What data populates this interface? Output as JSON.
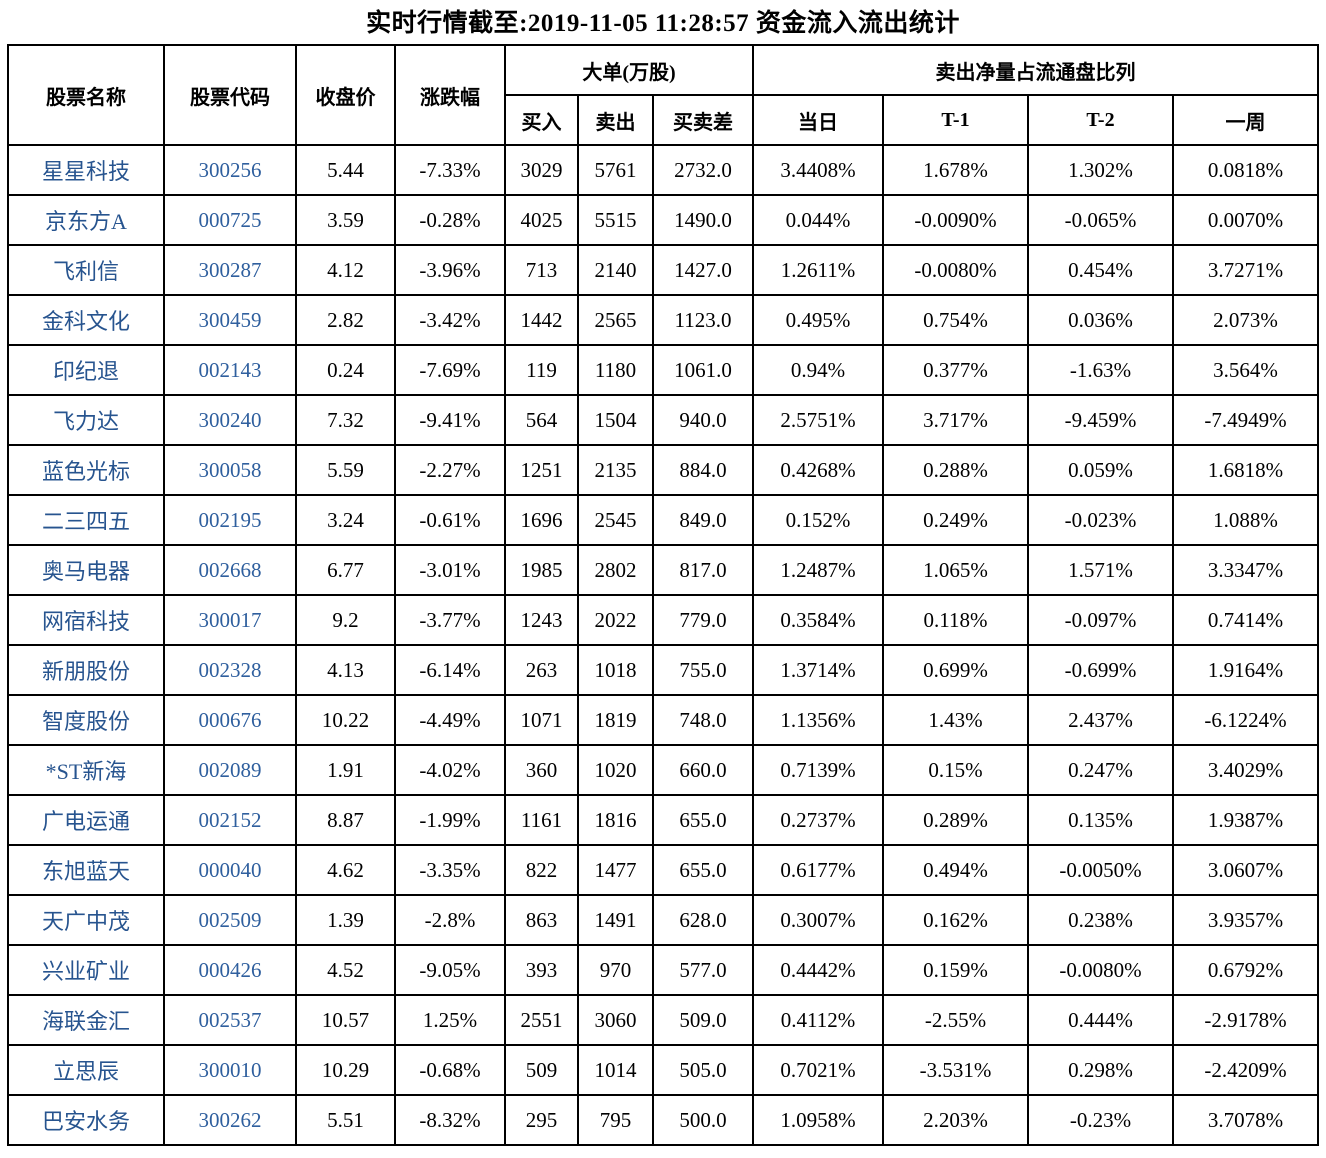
{
  "title": "实时行情截至:2019-11-05 11:28:57 资金流入流出统计",
  "colors": {
    "border": "#000000",
    "stock_name_text": "#27548F",
    "stock_code_text": "#2F5F9E",
    "data_text": "#000000",
    "background": "#FFFFFF"
  },
  "table": {
    "headers": {
      "stock_name": "股票名称",
      "stock_code": "股票代码",
      "close_price": "收盘价",
      "change_pct": "涨跌幅",
      "big_order_group": "大单(万股)",
      "buy": "买入",
      "sell": "卖出",
      "buy_sell_diff": "买卖差",
      "net_sell_group": "卖出净量占流通盘比列",
      "day": "当日",
      "t1": "T-1",
      "t2": "T-2",
      "week": "一周"
    },
    "column_fields": [
      "stock_name",
      "stock_code",
      "close_price",
      "change_pct",
      "buy",
      "sell",
      "buy_sell_diff",
      "net_sell_day",
      "net_sell_t1",
      "net_sell_t2",
      "net_sell_week"
    ],
    "rows": [
      [
        "星星科技",
        "300256",
        "5.44",
        "-7.33%",
        "3029",
        "5761",
        "2732.0",
        "3.4408%",
        "1.678%",
        "1.302%",
        "0.0818%"
      ],
      [
        "京东方A",
        "000725",
        "3.59",
        "-0.28%",
        "4025",
        "5515",
        "1490.0",
        "0.044%",
        "-0.0090%",
        "-0.065%",
        "0.0070%"
      ],
      [
        "飞利信",
        "300287",
        "4.12",
        "-3.96%",
        "713",
        "2140",
        "1427.0",
        "1.2611%",
        "-0.0080%",
        "0.454%",
        "3.7271%"
      ],
      [
        "金科文化",
        "300459",
        "2.82",
        "-3.42%",
        "1442",
        "2565",
        "1123.0",
        "0.495%",
        "0.754%",
        "0.036%",
        "2.073%"
      ],
      [
        "印纪退",
        "002143",
        "0.24",
        "-7.69%",
        "119",
        "1180",
        "1061.0",
        "0.94%",
        "0.377%",
        "-1.63%",
        "3.564%"
      ],
      [
        "飞力达",
        "300240",
        "7.32",
        "-9.41%",
        "564",
        "1504",
        "940.0",
        "2.5751%",
        "3.717%",
        "-9.459%",
        "-7.4949%"
      ],
      [
        "蓝色光标",
        "300058",
        "5.59",
        "-2.27%",
        "1251",
        "2135",
        "884.0",
        "0.4268%",
        "0.288%",
        "0.059%",
        "1.6818%"
      ],
      [
        "二三四五",
        "002195",
        "3.24",
        "-0.61%",
        "1696",
        "2545",
        "849.0",
        "0.152%",
        "0.249%",
        "-0.023%",
        "1.088%"
      ],
      [
        "奥马电器",
        "002668",
        "6.77",
        "-3.01%",
        "1985",
        "2802",
        "817.0",
        "1.2487%",
        "1.065%",
        "1.571%",
        "3.3347%"
      ],
      [
        "网宿科技",
        "300017",
        "9.2",
        "-3.77%",
        "1243",
        "2022",
        "779.0",
        "0.3584%",
        "0.118%",
        "-0.097%",
        "0.7414%"
      ],
      [
        "新朋股份",
        "002328",
        "4.13",
        "-6.14%",
        "263",
        "1018",
        "755.0",
        "1.3714%",
        "0.699%",
        "-0.699%",
        "1.9164%"
      ],
      [
        "智度股份",
        "000676",
        "10.22",
        "-4.49%",
        "1071",
        "1819",
        "748.0",
        "1.1356%",
        "1.43%",
        "2.437%",
        "-6.1224%"
      ],
      [
        "*ST新海",
        "002089",
        "1.91",
        "-4.02%",
        "360",
        "1020",
        "660.0",
        "0.7139%",
        "0.15%",
        "0.247%",
        "3.4029%"
      ],
      [
        "广电运通",
        "002152",
        "8.87",
        "-1.99%",
        "1161",
        "1816",
        "655.0",
        "0.2737%",
        "0.289%",
        "0.135%",
        "1.9387%"
      ],
      [
        "东旭蓝天",
        "000040",
        "4.62",
        "-3.35%",
        "822",
        "1477",
        "655.0",
        "0.6177%",
        "0.494%",
        "-0.0050%",
        "3.0607%"
      ],
      [
        "天广中茂",
        "002509",
        "1.39",
        "-2.8%",
        "863",
        "1491",
        "628.0",
        "0.3007%",
        "0.162%",
        "0.238%",
        "3.9357%"
      ],
      [
        "兴业矿业",
        "000426",
        "4.52",
        "-9.05%",
        "393",
        "970",
        "577.0",
        "0.4442%",
        "0.159%",
        "-0.0080%",
        "0.6792%"
      ],
      [
        "海联金汇",
        "002537",
        "10.57",
        "1.25%",
        "2551",
        "3060",
        "509.0",
        "0.4112%",
        "-2.55%",
        "0.444%",
        "-2.9178%"
      ],
      [
        "立思辰",
        "300010",
        "10.29",
        "-0.68%",
        "509",
        "1014",
        "505.0",
        "0.7021%",
        "-3.531%",
        "0.298%",
        "-2.4209%"
      ],
      [
        "巴安水务",
        "300262",
        "5.51",
        "-8.32%",
        "295",
        "795",
        "500.0",
        "1.0958%",
        "2.203%",
        "-0.23%",
        "3.7078%"
      ]
    ]
  }
}
